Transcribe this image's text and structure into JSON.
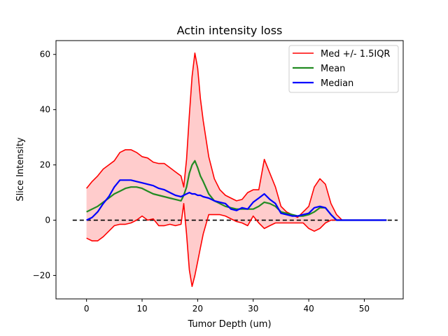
{
  "chart_data": {
    "type": "line",
    "title": "Actin intensity loss",
    "xlabel": "Tumor Depth (um)",
    "ylabel": "Slice Intensity",
    "xlim": [
      -5.5,
      57
    ],
    "ylim": [
      -28.5,
      65
    ],
    "xticks": [
      0,
      10,
      20,
      30,
      40,
      50
    ],
    "xtick_labels": [
      "0",
      "10",
      "20",
      "30",
      "40",
      "50"
    ],
    "yticks": [
      -20,
      0,
      20,
      40,
      60
    ],
    "ytick_labels": [
      "−20",
      "0",
      "20",
      "40",
      "60"
    ],
    "grid": false,
    "legend_position": "top-right",
    "colors": {
      "band_line": "#ff0000",
      "band_fill": "#ffcccc",
      "mean": "#228b22",
      "median": "#0000ff",
      "reference": "#000000"
    },
    "reference_line": {
      "y": 0,
      "x_range": [
        -2.5,
        56
      ],
      "style": "dashed"
    },
    "x": [
      0,
      1,
      2,
      3,
      4,
      5,
      6,
      7,
      8,
      9,
      10,
      11,
      12,
      13,
      14,
      15,
      16,
      17,
      17.5,
      18,
      18.5,
      19,
      19.5,
      20,
      20.5,
      21,
      22,
      23,
      24,
      25,
      26,
      27,
      28,
      29,
      30,
      31,
      32,
      33,
      34,
      35,
      36,
      37,
      38,
      39,
      40,
      41,
      42,
      43,
      44,
      45,
      46,
      47,
      48,
      49,
      50,
      51,
      52,
      53,
      54
    ],
    "series": [
      {
        "name": "Med +/- 1.5IQR",
        "kind": "band",
        "upper": [
          11.5,
          14,
          16,
          18.5,
          20,
          21.5,
          24.5,
          25.5,
          25.5,
          24.5,
          23,
          22.5,
          21,
          20.5,
          20.5,
          19,
          17.5,
          16,
          12,
          22,
          38,
          52,
          60.5,
          55,
          44,
          36,
          23,
          15,
          11,
          9,
          8,
          7,
          7.5,
          10,
          11,
          11,
          22,
          17,
          12,
          5,
          3,
          2,
          1,
          3,
          5,
          12,
          15,
          13,
          6,
          2,
          0,
          0,
          0,
          0,
          0,
          0,
          0,
          0,
          0
        ],
        "lower": [
          -6.5,
          -7.5,
          -7.5,
          -6,
          -4,
          -2,
          -1.5,
          -1.5,
          -1,
          0,
          1.5,
          0,
          0.5,
          -2,
          -2,
          -1.5,
          -2,
          -1.5,
          6,
          -5,
          -18,
          -24,
          -20,
          -15,
          -10,
          -5,
          2,
          2,
          2,
          1.5,
          0.5,
          -0.5,
          -1,
          -2,
          1.5,
          -1,
          -3,
          -2,
          -1,
          -1,
          -1,
          -1,
          -1,
          -1,
          -3,
          -4,
          -3,
          -1,
          0,
          0,
          0,
          0,
          0,
          0,
          0,
          0,
          0,
          0,
          0
        ]
      },
      {
        "name": "Mean",
        "values": [
          3,
          4,
          5,
          6.5,
          8,
          9.5,
          10.5,
          11.5,
          12,
          12,
          11.5,
          10.5,
          9.5,
          9,
          8.5,
          8,
          7.5,
          7,
          9,
          12,
          17,
          20,
          21.5,
          19,
          16,
          14,
          9.5,
          7,
          6,
          5,
          4.5,
          4,
          4,
          4,
          4,
          5,
          6.5,
          6,
          5,
          3,
          2.5,
          2,
          1.5,
          1.5,
          2,
          3,
          4.5,
          4.5,
          2,
          0,
          0,
          0,
          0,
          0,
          0,
          0,
          0,
          0,
          0
        ]
      },
      {
        "name": "Median",
        "values": [
          0,
          1,
          3,
          6,
          8.5,
          12,
          14.5,
          14.5,
          14.5,
          14,
          13.5,
          13,
          12.5,
          11.5,
          11,
          10,
          9,
          8.5,
          9,
          9.5,
          10,
          9.5,
          9.5,
          9,
          9,
          8.5,
          8,
          7,
          6.5,
          6,
          4,
          3.5,
          4.5,
          4,
          6.5,
          8,
          9.5,
          7.5,
          6,
          2.5,
          2,
          1.5,
          1.5,
          2,
          2.5,
          4.5,
          5,
          4.5,
          2,
          0,
          0,
          0,
          0,
          0,
          0,
          0,
          0,
          0,
          0
        ]
      }
    ]
  }
}
